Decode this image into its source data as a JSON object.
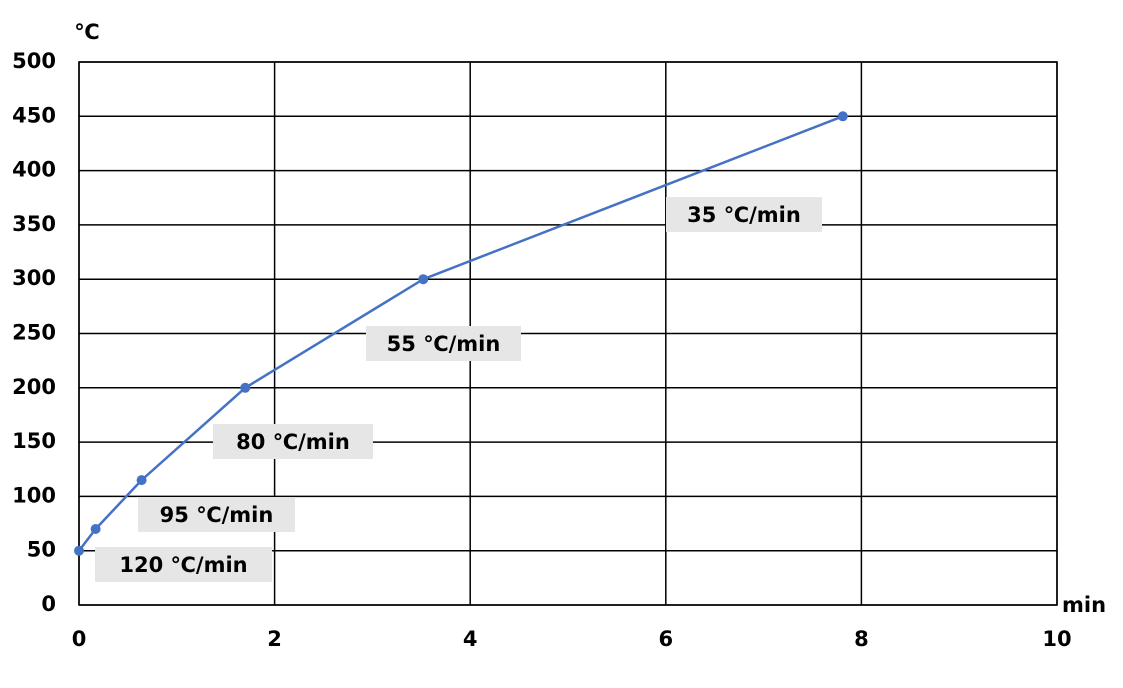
{
  "chart_data": {
    "type": "line",
    "x_label": "min",
    "y_label": "℃",
    "x": [
      0,
      0.17,
      0.64,
      1.7,
      3.52,
      7.81
    ],
    "series": [
      {
        "color": "#4472c4",
        "values": [
          50,
          70,
          115,
          200,
          300,
          450
        ]
      }
    ],
    "xlim": [
      0,
      10
    ],
    "xticks": [
      0,
      2,
      4,
      6,
      8,
      10
    ],
    "ylim": [
      0,
      500
    ],
    "yticks": [
      0,
      50,
      100,
      150,
      200,
      250,
      300,
      350,
      400,
      450,
      500
    ],
    "grid": true,
    "annotations": [
      "120 ℃/min",
      "95 ℃/min",
      "80 ℃/min",
      "55 ℃/min",
      "35 ℃/min"
    ]
  }
}
